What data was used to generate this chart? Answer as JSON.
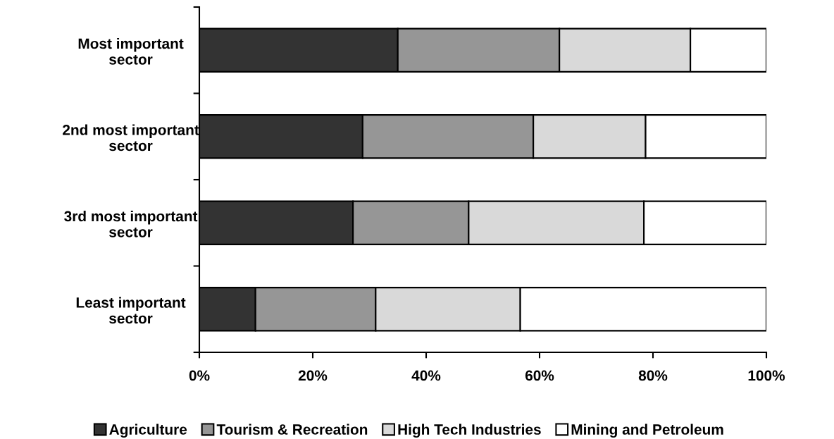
{
  "chart_data": {
    "type": "bar",
    "orientation": "horizontal",
    "stacked": true,
    "categories": [
      "Most important\nsector",
      "2nd most important\nsector",
      "3rd most important\nsector",
      "Least important\nsector"
    ],
    "series": [
      {
        "name": "Agriculture",
        "color": "#333333",
        "values": [
          35.0,
          28.8,
          27.1,
          9.9
        ]
      },
      {
        "name": "Tourism & Recreation",
        "color": "#969696",
        "values": [
          28.5,
          30.1,
          20.4,
          21.2
        ]
      },
      {
        "name": "High Tech Industries",
        "color": "#d9d9d9",
        "values": [
          23.1,
          19.8,
          30.9,
          25.5
        ]
      },
      {
        "name": "Mining and Petroleum",
        "color": "#ffffff",
        "values": [
          13.4,
          21.3,
          21.6,
          43.4
        ]
      }
    ],
    "xlim": [
      0,
      100
    ],
    "xticks": [
      {
        "value": 0,
        "label": "0%"
      },
      {
        "value": 20,
        "label": "20%"
      },
      {
        "value": 40,
        "label": "40%"
      },
      {
        "value": 60,
        "label": "60%"
      },
      {
        "value": 80,
        "label": "80%"
      },
      {
        "value": 100,
        "label": "100%"
      }
    ],
    "grid": false,
    "legend": "bottom"
  }
}
